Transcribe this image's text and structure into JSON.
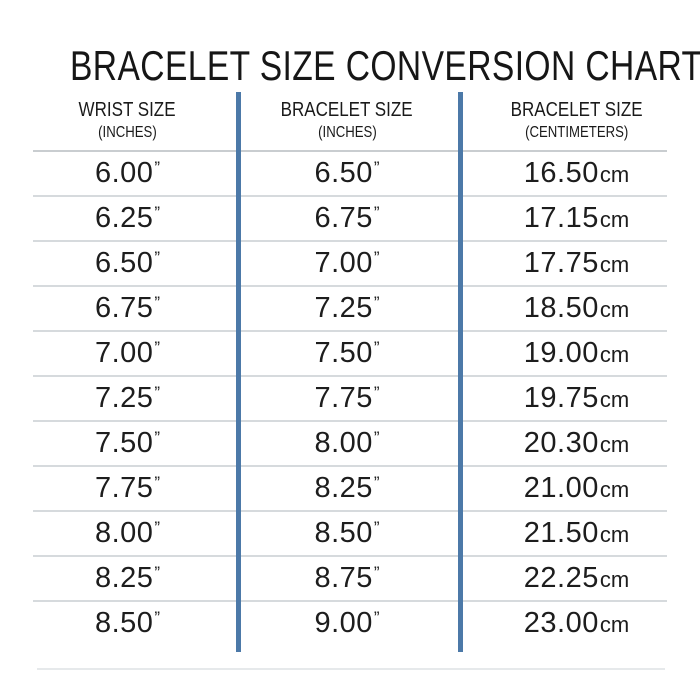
{
  "title": "BRACELET SIZE CONVERSION CHART",
  "table": {
    "columns": [
      {
        "label": "WRIST SIZE",
        "sub": "(INCHES)"
      },
      {
        "label": "BRACELET SIZE",
        "sub": "(INCHES)"
      },
      {
        "label": "BRACELET SIZE",
        "sub": "(CENTIMETERS)"
      }
    ],
    "units": {
      "inches": "”",
      "centimeters": "cm"
    },
    "rows": [
      [
        "6.00",
        "6.50",
        "16.50"
      ],
      [
        "6.25",
        "6.75",
        "17.15"
      ],
      [
        "6.50",
        "7.00",
        "17.75"
      ],
      [
        "6.75",
        "7.25",
        "18.50"
      ],
      [
        "7.00",
        "7.50",
        "19.00"
      ],
      [
        "7.25",
        "7.75",
        "19.75"
      ],
      [
        "7.50",
        "8.00",
        "20.30"
      ],
      [
        "7.75",
        "8.25",
        "21.00"
      ],
      [
        "8.00",
        "8.50",
        "21.50"
      ],
      [
        "8.25",
        "8.75",
        "22.25"
      ],
      [
        "8.50",
        "9.00",
        "23.00"
      ]
    ]
  },
  "colors": {
    "text": "#1d1d1d",
    "divider_blue": "#4c79a8",
    "row_line": "#d6dadd",
    "header_line": "#c9cdd0",
    "bottom_line": "#e6e9eb",
    "background": "#ffffff"
  },
  "chart_data": {
    "type": "table",
    "title": "BRACELET SIZE CONVERSION CHART",
    "columns": [
      "WRIST SIZE (INCHES)",
      "BRACELET SIZE (INCHES)",
      "BRACELET SIZE (CENTIMETERS)"
    ],
    "rows": [
      {
        "wrist_in": 6.0,
        "bracelet_in": 6.5,
        "bracelet_cm": 16.5
      },
      {
        "wrist_in": 6.25,
        "bracelet_in": 6.75,
        "bracelet_cm": 17.15
      },
      {
        "wrist_in": 6.5,
        "bracelet_in": 7.0,
        "bracelet_cm": 17.75
      },
      {
        "wrist_in": 6.75,
        "bracelet_in": 7.25,
        "bracelet_cm": 18.5
      },
      {
        "wrist_in": 7.0,
        "bracelet_in": 7.5,
        "bracelet_cm": 19.0
      },
      {
        "wrist_in": 7.25,
        "bracelet_in": 7.75,
        "bracelet_cm": 19.75
      },
      {
        "wrist_in": 7.5,
        "bracelet_in": 8.0,
        "bracelet_cm": 20.3
      },
      {
        "wrist_in": 7.75,
        "bracelet_in": 8.25,
        "bracelet_cm": 21.0
      },
      {
        "wrist_in": 8.0,
        "bracelet_in": 8.5,
        "bracelet_cm": 21.5
      },
      {
        "wrist_in": 8.25,
        "bracelet_in": 8.75,
        "bracelet_cm": 22.25
      },
      {
        "wrist_in": 8.5,
        "bracelet_in": 9.0,
        "bracelet_cm": 23.0
      }
    ]
  }
}
